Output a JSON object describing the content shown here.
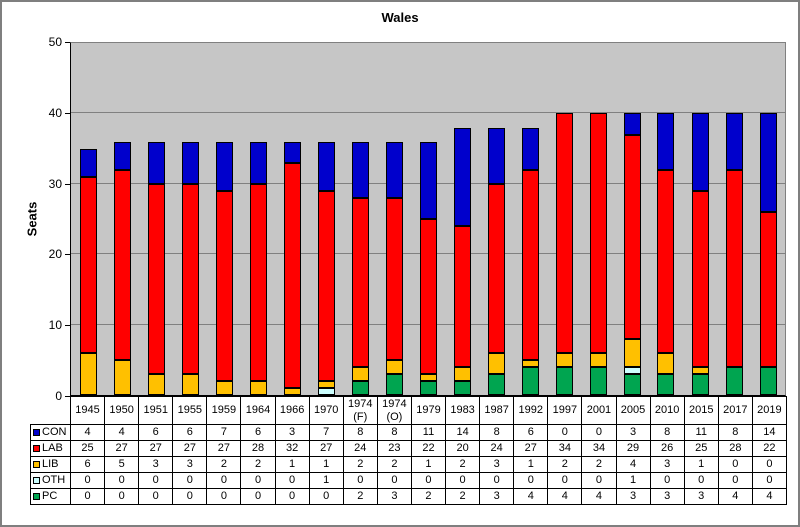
{
  "chart_data": {
    "type": "bar",
    "stacked": true,
    "title": "Wales",
    "ylabel": "Seats",
    "ylim": [
      0,
      50
    ],
    "yticks": [
      0,
      10,
      20,
      30,
      40,
      50
    ],
    "grid": true,
    "plot_bg": "#c6c6c6",
    "gridline_color": "#808080",
    "legend_position": "table-left",
    "stack_order_bottom_to_top": [
      "PC",
      "OTH",
      "LIB",
      "LAB",
      "CON"
    ],
    "categories": [
      "1945",
      "1950",
      "1951",
      "1955",
      "1959",
      "1964",
      "1966",
      "1970",
      "1974 (F)",
      "1974 (O)",
      "1979",
      "1983",
      "1987",
      "1992",
      "1997",
      "2001",
      "2005",
      "2010",
      "2015",
      "2017",
      "2019"
    ],
    "series": [
      {
        "name": "CON",
        "color": "#0000cc",
        "values": [
          4,
          4,
          6,
          6,
          7,
          6,
          3,
          7,
          8,
          8,
          11,
          14,
          8,
          6,
          0,
          0,
          3,
          8,
          11,
          8,
          14
        ]
      },
      {
        "name": "LAB",
        "color": "#ff0000",
        "values": [
          25,
          27,
          27,
          27,
          27,
          28,
          32,
          27,
          24,
          23,
          22,
          20,
          24,
          27,
          34,
          34,
          29,
          26,
          25,
          28,
          22
        ]
      },
      {
        "name": "LIB",
        "color": "#ffc000",
        "values": [
          6,
          5,
          3,
          3,
          2,
          2,
          1,
          1,
          2,
          2,
          1,
          2,
          3,
          1,
          2,
          2,
          4,
          3,
          1,
          0,
          0
        ]
      },
      {
        "name": "OTH",
        "color": "#ccffff",
        "values": [
          0,
          0,
          0,
          0,
          0,
          0,
          0,
          1,
          0,
          0,
          0,
          0,
          0,
          0,
          0,
          0,
          1,
          0,
          0,
          0,
          0
        ]
      },
      {
        "name": "PC",
        "color": "#00a550",
        "values": [
          0,
          0,
          0,
          0,
          0,
          0,
          0,
          0,
          2,
          3,
          2,
          2,
          3,
          4,
          4,
          4,
          3,
          3,
          3,
          4,
          4
        ]
      }
    ]
  }
}
